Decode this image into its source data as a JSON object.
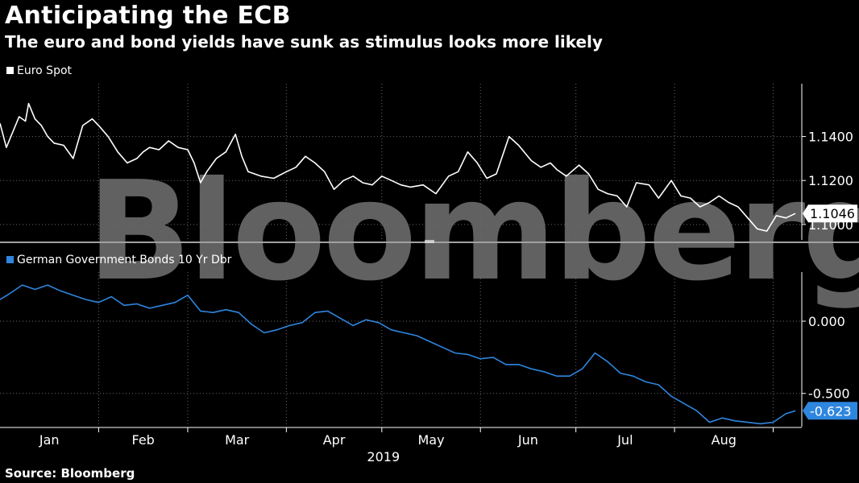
{
  "header": {
    "title": "Anticipating the ECB",
    "subtitle": "The euro and bond yields have sunk as stimulus looks more likely"
  },
  "footer": {
    "source": "Source: Bloomberg"
  },
  "watermark": "Bloomberg",
  "colors": {
    "background": "#000000",
    "euro_line": "#ffffff",
    "bund_line": "#2e86de",
    "grid": "#6b6b6b",
    "divider": "#a0a0a0"
  },
  "chart_data": [
    {
      "type": "line",
      "legend": "Euro Spot",
      "legend_position": "top-left",
      "y_axis_side": "right",
      "ylim": [
        1.093,
        1.164
      ],
      "yticks": [
        "1.1000",
        "1.1200",
        "1.1400"
      ],
      "last_value_label": "1.1046",
      "grid": true,
      "series": [
        {
          "name": "Euro Spot",
          "x": [
            "2019-01-01",
            "2019-01-03",
            "2019-01-05",
            "2019-01-07",
            "2019-01-09",
            "2019-01-10",
            "2019-01-12",
            "2019-01-14",
            "2019-01-16",
            "2019-01-18",
            "2019-01-21",
            "2019-01-24",
            "2019-01-27",
            "2019-01-30",
            "2019-02-01",
            "2019-02-04",
            "2019-02-07",
            "2019-02-10",
            "2019-02-13",
            "2019-02-15",
            "2019-02-17",
            "2019-02-20",
            "2019-02-23",
            "2019-02-26",
            "2019-03-01",
            "2019-03-03",
            "2019-03-05",
            "2019-03-07",
            "2019-03-10",
            "2019-03-13",
            "2019-03-16",
            "2019-03-18",
            "2019-03-20",
            "2019-03-24",
            "2019-03-28",
            "2019-04-01",
            "2019-04-04",
            "2019-04-07",
            "2019-04-10",
            "2019-04-13",
            "2019-04-16",
            "2019-04-19",
            "2019-04-22",
            "2019-04-25",
            "2019-04-28",
            "2019-05-01",
            "2019-05-04",
            "2019-05-07",
            "2019-05-10",
            "2019-05-14",
            "2019-05-18",
            "2019-05-22",
            "2019-05-25",
            "2019-05-28",
            "2019-05-31",
            "2019-06-03",
            "2019-06-06",
            "2019-06-10",
            "2019-06-13",
            "2019-06-17",
            "2019-06-20",
            "2019-06-23",
            "2019-06-25",
            "2019-06-28",
            "2019-07-02",
            "2019-07-05",
            "2019-07-08",
            "2019-07-11",
            "2019-07-14",
            "2019-07-17",
            "2019-07-20",
            "2019-07-24",
            "2019-07-27",
            "2019-07-31",
            "2019-08-03",
            "2019-08-06",
            "2019-08-09",
            "2019-08-12",
            "2019-08-15",
            "2019-08-18",
            "2019-08-21",
            "2019-08-24",
            "2019-08-27",
            "2019-08-30",
            "2019-09-02",
            "2019-09-05",
            "2019-09-08"
          ],
          "y": [
            1.146,
            1.135,
            1.142,
            1.149,
            1.147,
            1.155,
            1.148,
            1.145,
            1.14,
            1.137,
            1.136,
            1.13,
            1.145,
            1.148,
            1.145,
            1.14,
            1.133,
            1.128,
            1.13,
            1.133,
            1.135,
            1.134,
            1.138,
            1.135,
            1.134,
            1.128,
            1.119,
            1.124,
            1.13,
            1.133,
            1.141,
            1.131,
            1.124,
            1.122,
            1.121,
            1.124,
            1.126,
            1.131,
            1.128,
            1.124,
            1.116,
            1.12,
            1.122,
            1.119,
            1.118,
            1.122,
            1.12,
            1.118,
            1.117,
            1.118,
            1.114,
            1.122,
            1.124,
            1.133,
            1.128,
            1.121,
            1.123,
            1.14,
            1.136,
            1.129,
            1.126,
            1.128,
            1.125,
            1.122,
            1.127,
            1.123,
            1.116,
            1.114,
            1.113,
            1.108,
            1.119,
            1.118,
            1.112,
            1.12,
            1.113,
            1.112,
            1.108,
            1.11,
            1.113,
            1.11,
            1.108,
            1.103,
            1.098,
            1.097,
            1.104,
            1.103,
            1.105
          ]
        }
      ]
    },
    {
      "type": "line",
      "legend": "German Government Bonds 10 Yr Dbr",
      "legend_position": "top-left",
      "y_axis_side": "right",
      "ylim": [
        -0.73,
        0.34
      ],
      "yticks": [
        "-0.500",
        "0.000"
      ],
      "last_value_label": "-0.623",
      "grid": true,
      "x_tick_labels": [
        "Jan",
        "Feb",
        "Mar",
        "Apr",
        "May",
        "Jun",
        "Jul",
        "Aug"
      ],
      "x_axis_year": "2019",
      "series": [
        {
          "name": "German Government Bonds 10 Yr Dbr",
          "x": [
            "2019-01-01",
            "2019-01-04",
            "2019-01-08",
            "2019-01-12",
            "2019-01-16",
            "2019-01-20",
            "2019-01-24",
            "2019-01-28",
            "2019-02-01",
            "2019-02-05",
            "2019-02-09",
            "2019-02-13",
            "2019-02-17",
            "2019-02-21",
            "2019-02-25",
            "2019-03-01",
            "2019-03-05",
            "2019-03-09",
            "2019-03-13",
            "2019-03-17",
            "2019-03-21",
            "2019-03-25",
            "2019-03-29",
            "2019-04-02",
            "2019-04-06",
            "2019-04-10",
            "2019-04-14",
            "2019-04-18",
            "2019-04-22",
            "2019-04-26",
            "2019-04-30",
            "2019-05-04",
            "2019-05-08",
            "2019-05-12",
            "2019-05-16",
            "2019-05-20",
            "2019-05-24",
            "2019-05-28",
            "2019-06-01",
            "2019-06-05",
            "2019-06-09",
            "2019-06-13",
            "2019-06-17",
            "2019-06-21",
            "2019-06-25",
            "2019-06-29",
            "2019-07-03",
            "2019-07-07",
            "2019-07-11",
            "2019-07-15",
            "2019-07-19",
            "2019-07-23",
            "2019-07-27",
            "2019-07-31",
            "2019-08-04",
            "2019-08-08",
            "2019-08-12",
            "2019-08-16",
            "2019-08-20",
            "2019-08-24",
            "2019-08-28",
            "2019-09-01",
            "2019-09-05",
            "2019-09-08"
          ],
          "y": [
            0.15,
            0.19,
            0.25,
            0.22,
            0.25,
            0.21,
            0.18,
            0.15,
            0.13,
            0.17,
            0.11,
            0.12,
            0.09,
            0.11,
            0.13,
            0.18,
            0.07,
            0.06,
            0.08,
            0.06,
            -0.02,
            -0.08,
            -0.06,
            -0.03,
            -0.01,
            0.06,
            0.07,
            0.02,
            -0.03,
            0.01,
            -0.01,
            -0.06,
            -0.08,
            -0.1,
            -0.14,
            -0.18,
            -0.22,
            -0.23,
            -0.26,
            -0.25,
            -0.3,
            -0.3,
            -0.33,
            -0.35,
            -0.38,
            -0.38,
            -0.33,
            -0.22,
            -0.28,
            -0.36,
            -0.38,
            -0.42,
            -0.44,
            -0.52,
            -0.57,
            -0.62,
            -0.7,
            -0.67,
            -0.69,
            -0.7,
            -0.71,
            -0.7,
            -0.64,
            -0.62
          ]
        }
      ]
    }
  ]
}
